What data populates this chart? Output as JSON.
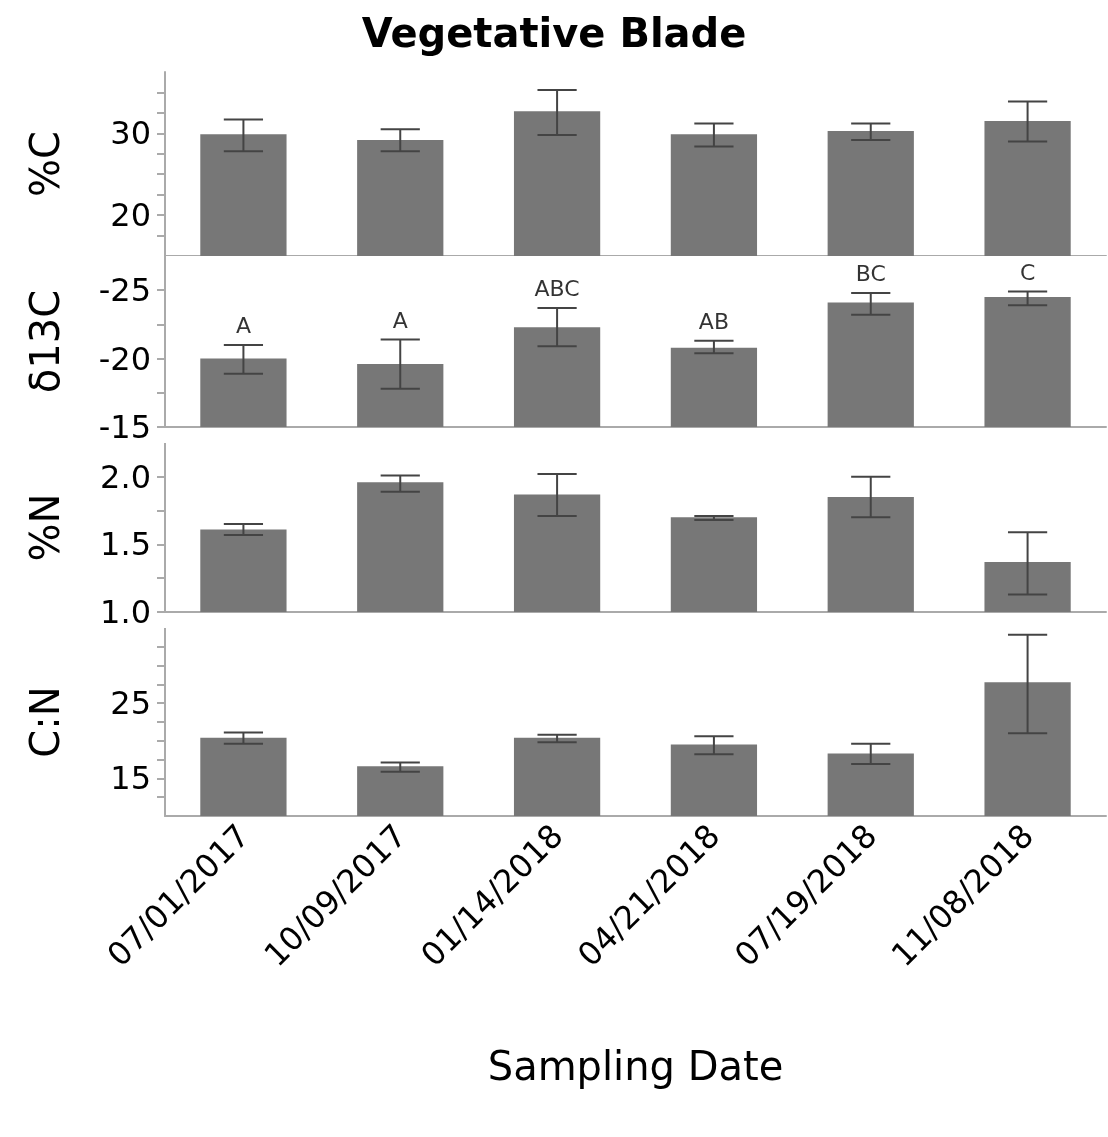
{
  "chart_data": [
    {
      "type": "bar",
      "title": "Vegetative Blade",
      "ylabel": "%C",
      "categories": [
        "07/01/2017",
        "10/09/2017",
        "01/14/2018",
        "04/21/2018",
        "07/19/2018",
        "11/08/2018"
      ],
      "values": [
        29.9,
        29.2,
        32.7,
        29.9,
        30.3,
        31.5
      ],
      "errors": [
        [
          27.8,
          31.7
        ],
        [
          27.8,
          30.5
        ],
        [
          29.8,
          35.3
        ],
        [
          28.4,
          31.2
        ],
        [
          29.2,
          31.2
        ],
        [
          29.0,
          33.9
        ]
      ],
      "color": "#777777",
      "ylim": [
        15,
        37.5
      ],
      "yticks": [
        {
          "value": 17.5,
          "label": null
        },
        20,
        {
          "value": 22.5,
          "label": null
        },
        {
          "value": 25,
          "label": null
        },
        {
          "value": 27.5,
          "label": null
        },
        30,
        {
          "value": 32.5,
          "label": null
        },
        {
          "value": 35,
          "label": null
        }
      ],
      "tick_labels": "y",
      "grid": false
    },
    {
      "type": "bar",
      "ylabel": "δ13C",
      "categories": [
        "07/01/2017",
        "10/09/2017",
        "01/14/2018",
        "04/21/2018",
        "07/19/2018",
        "11/08/2018"
      ],
      "values": [
        -20.0,
        -19.6,
        -22.3,
        -20.8,
        -24.1,
        -24.5
      ],
      "errors": [
        [
          -21.0,
          -18.9
        ],
        [
          -21.4,
          -17.8
        ],
        [
          -23.7,
          -20.9
        ],
        [
          -21.3,
          -20.4
        ],
        [
          -24.8,
          -23.2
        ],
        [
          -24.9,
          -23.9
        ]
      ],
      "color": "#777777",
      "ylim": [
        -15,
        -27.5
      ],
      "yticks": [
        -15,
        {
          "value": -17.5,
          "label": null
        },
        -20,
        {
          "value": -22.5,
          "label": null
        },
        -25
      ],
      "tick_labels": "y",
      "grid": false,
      "annotations": [
        {
          "text": "A",
          "x": "07/01/2017",
          "y": -21.0
        },
        {
          "text": "A",
          "x": "10/09/2017",
          "y": -21.4
        },
        {
          "text": "ABC",
          "x": "01/14/2018",
          "y": -23.7
        },
        {
          "text": "AB",
          "x": "04/21/2018",
          "y": -21.3
        },
        {
          "text": "BC",
          "x": "07/19/2018",
          "y": -24.8
        },
        {
          "text": "C",
          "x": "11/08/2018",
          "y": -24.9
        }
      ]
    },
    {
      "type": "bar",
      "ylabel": "%N",
      "categories": [
        "07/01/2017",
        "10/09/2017",
        "01/14/2018",
        "04/21/2018",
        "07/19/2018",
        "11/08/2018"
      ],
      "values": [
        1.61,
        1.96,
        1.87,
        1.7,
        1.85,
        1.37
      ],
      "errors": [
        [
          1.57,
          1.65
        ],
        [
          1.89,
          2.01
        ],
        [
          1.71,
          2.02
        ],
        [
          1.68,
          1.71
        ],
        [
          1.7,
          2.0
        ],
        [
          1.13,
          1.59
        ]
      ],
      "color": "#777777",
      "ylim": [
        1.0,
        2.25
      ],
      "yticks": [
        {
          "value": 1.0,
          "label": "1.0"
        },
        {
          "value": 1.25,
          "label": null
        },
        1.5,
        {
          "value": 1.75,
          "label": null
        },
        {
          "value": 2.0,
          "label": "2.0"
        }
      ],
      "tick_labels": "y",
      "grid": false
    },
    {
      "type": "bar",
      "ylabel": "C:N",
      "xlabel": "Sampling Date",
      "categories": [
        "07/01/2017",
        "10/09/2017",
        "01/14/2018",
        "04/21/2018",
        "07/19/2018",
        "11/08/2018"
      ],
      "values": [
        20.4,
        16.6,
        20.4,
        19.5,
        18.3,
        27.8
      ],
      "errors": [
        [
          19.6,
          21.1
        ],
        [
          15.9,
          17.1
        ],
        [
          19.8,
          20.8
        ],
        [
          18.2,
          20.6
        ],
        [
          16.9,
          19.6
        ],
        [
          21.0,
          34.1
        ]
      ],
      "color": "#777777",
      "ylim": [
        10,
        35
      ],
      "yticks": [
        {
          "value": 12.5,
          "label": null
        },
        15,
        {
          "value": 17.5,
          "label": null
        },
        {
          "value": 20,
          "label": null
        },
        {
          "value": 22.5,
          "label": null
        },
        25,
        {
          "value": 27.5,
          "label": null
        },
        {
          "value": 30,
          "label": null
        },
        {
          "value": 32.5,
          "label": null
        }
      ],
      "grid": false
    }
  ]
}
